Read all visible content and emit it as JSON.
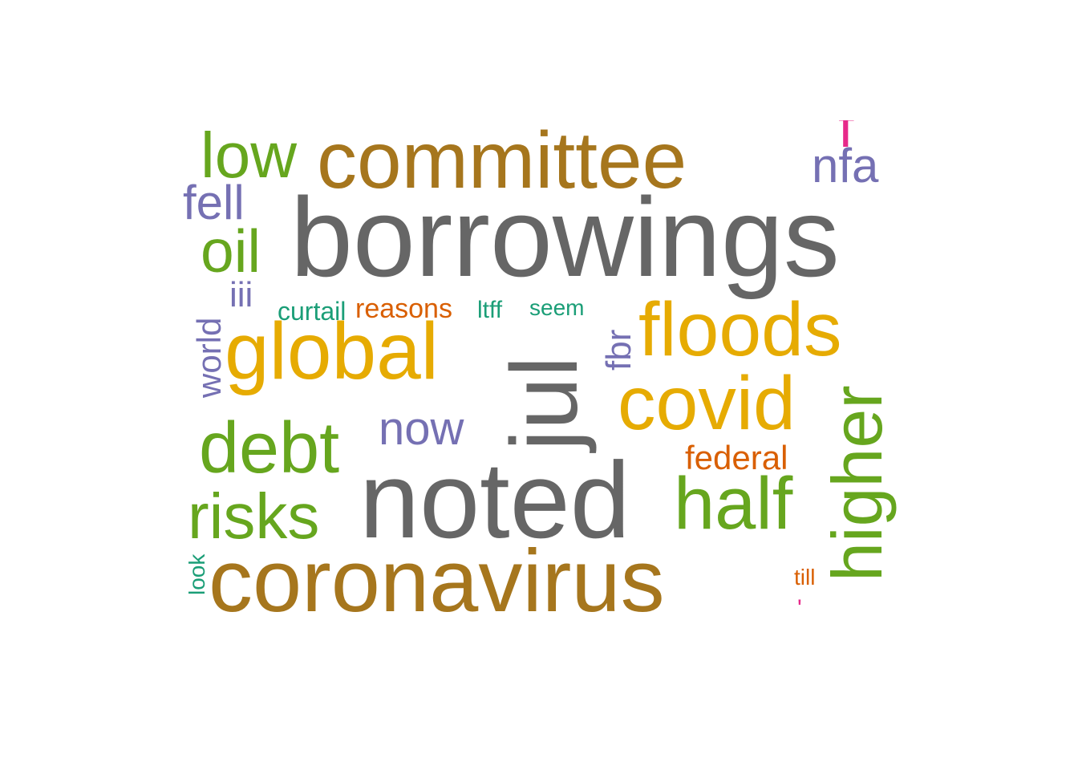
{
  "colors": {
    "gray": "#666666",
    "brown": "#a6761d",
    "gold": "#e6ab02",
    "green": "#66a61e",
    "purple": "#7570b3",
    "teal": "#1b9e77",
    "orange": "#d95f02",
    "pink": "#e7298a"
  },
  "words": [
    {
      "id": "committee",
      "text": "committee",
      "color": "brown"
    },
    {
      "id": "borrowings",
      "text": "borrowings",
      "color": "gray"
    },
    {
      "id": "noted",
      "text": "noted",
      "color": "gray"
    },
    {
      "id": "coronavirus",
      "text": "coronavirus",
      "color": "brown"
    },
    {
      "id": "jul",
      "text": "jul",
      "color": "gray"
    },
    {
      "id": "global",
      "text": "global",
      "color": "gold"
    },
    {
      "id": "floods",
      "text": "floods",
      "color": "gold"
    },
    {
      "id": "covid",
      "text": "covid",
      "color": "gold"
    },
    {
      "id": "higher",
      "text": "higher",
      "color": "green"
    },
    {
      "id": "low",
      "text": "low",
      "color": "green"
    },
    {
      "id": "debt",
      "text": "debt",
      "color": "green"
    },
    {
      "id": "risks",
      "text": "risks",
      "color": "green"
    },
    {
      "id": "half",
      "text": "half",
      "color": "green"
    },
    {
      "id": "oil",
      "text": "oil",
      "color": "green"
    },
    {
      "id": "nfa",
      "text": "nfa",
      "color": "purple"
    },
    {
      "id": "fell",
      "text": "fell",
      "color": "purple"
    },
    {
      "id": "now",
      "text": "now",
      "color": "purple"
    },
    {
      "id": "world",
      "text": "world",
      "color": "purple"
    },
    {
      "id": "fbr",
      "text": "fbr",
      "color": "purple"
    },
    {
      "id": "iii",
      "text": "iii",
      "color": "purple"
    },
    {
      "id": "federal",
      "text": "federal",
      "color": "orange"
    },
    {
      "id": "reasons",
      "text": "reasons",
      "color": "orange"
    },
    {
      "id": "till",
      "text": "till",
      "color": "orange"
    },
    {
      "id": "curtail",
      "text": "curtail",
      "color": "teal"
    },
    {
      "id": "ltff",
      "text": "ltff",
      "color": "teal"
    },
    {
      "id": "seem",
      "text": "seem",
      "color": "teal"
    },
    {
      "id": "look",
      "text": "look",
      "color": "teal"
    },
    {
      "id": "pink-fragment-top",
      "text": "f",
      "color": "pink"
    },
    {
      "id": "pink-fragment-bottom",
      "text": "'",
      "color": "pink"
    }
  ]
}
